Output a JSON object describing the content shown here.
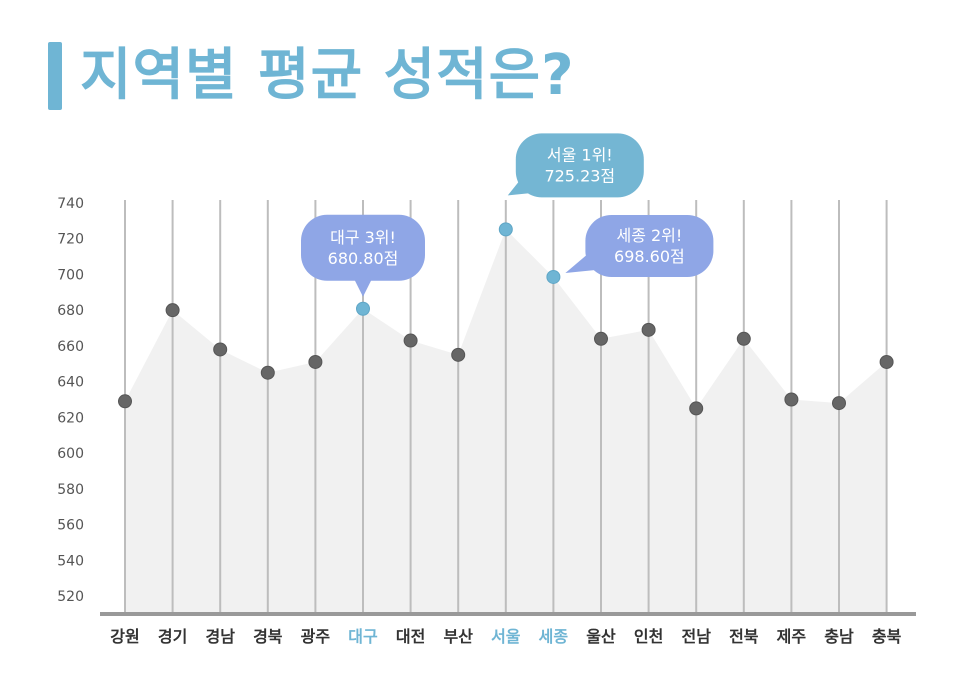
{
  "title": "지역별 평균 성적은?",
  "colors": {
    "accent": "#6fb5d4",
    "callout_blue": "#8fa6e6",
    "callout_teal": "#74b6d3",
    "point": "#666666",
    "area": "#f1f1f1",
    "gridline": "#bdbdbd",
    "baseline": "#999999"
  },
  "chart_data": {
    "type": "area",
    "title": "지역별 평균 성적은?",
    "xlabel": "",
    "ylabel": "",
    "categories": [
      "강원",
      "경기",
      "경남",
      "경북",
      "광주",
      "대구",
      "대전",
      "부산",
      "서울",
      "세종",
      "울산",
      "인천",
      "전남",
      "전북",
      "제주",
      "충남",
      "충북"
    ],
    "values": [
      629,
      680,
      658,
      645,
      651,
      680.8,
      663,
      655,
      725.23,
      698.6,
      664,
      669,
      625,
      664,
      630,
      628,
      651
    ],
    "highlighted": [
      "대구",
      "서울",
      "세종"
    ],
    "yticks": [
      520,
      540,
      560,
      580,
      600,
      620,
      640,
      660,
      680,
      700,
      720,
      740
    ],
    "ylim": [
      515,
      740
    ],
    "grid": "vertical",
    "annotations": [
      {
        "category": "대구",
        "line1": "대구 3위!",
        "line2": "680.80점",
        "style": "blue",
        "placement": "above"
      },
      {
        "category": "서울",
        "line1": "서울 1위!",
        "line2": "725.23점",
        "style": "teal",
        "placement": "above-right"
      },
      {
        "category": "세종",
        "line1": "세종 2위!",
        "line2": "698.60점",
        "style": "blue",
        "placement": "right"
      }
    ]
  }
}
